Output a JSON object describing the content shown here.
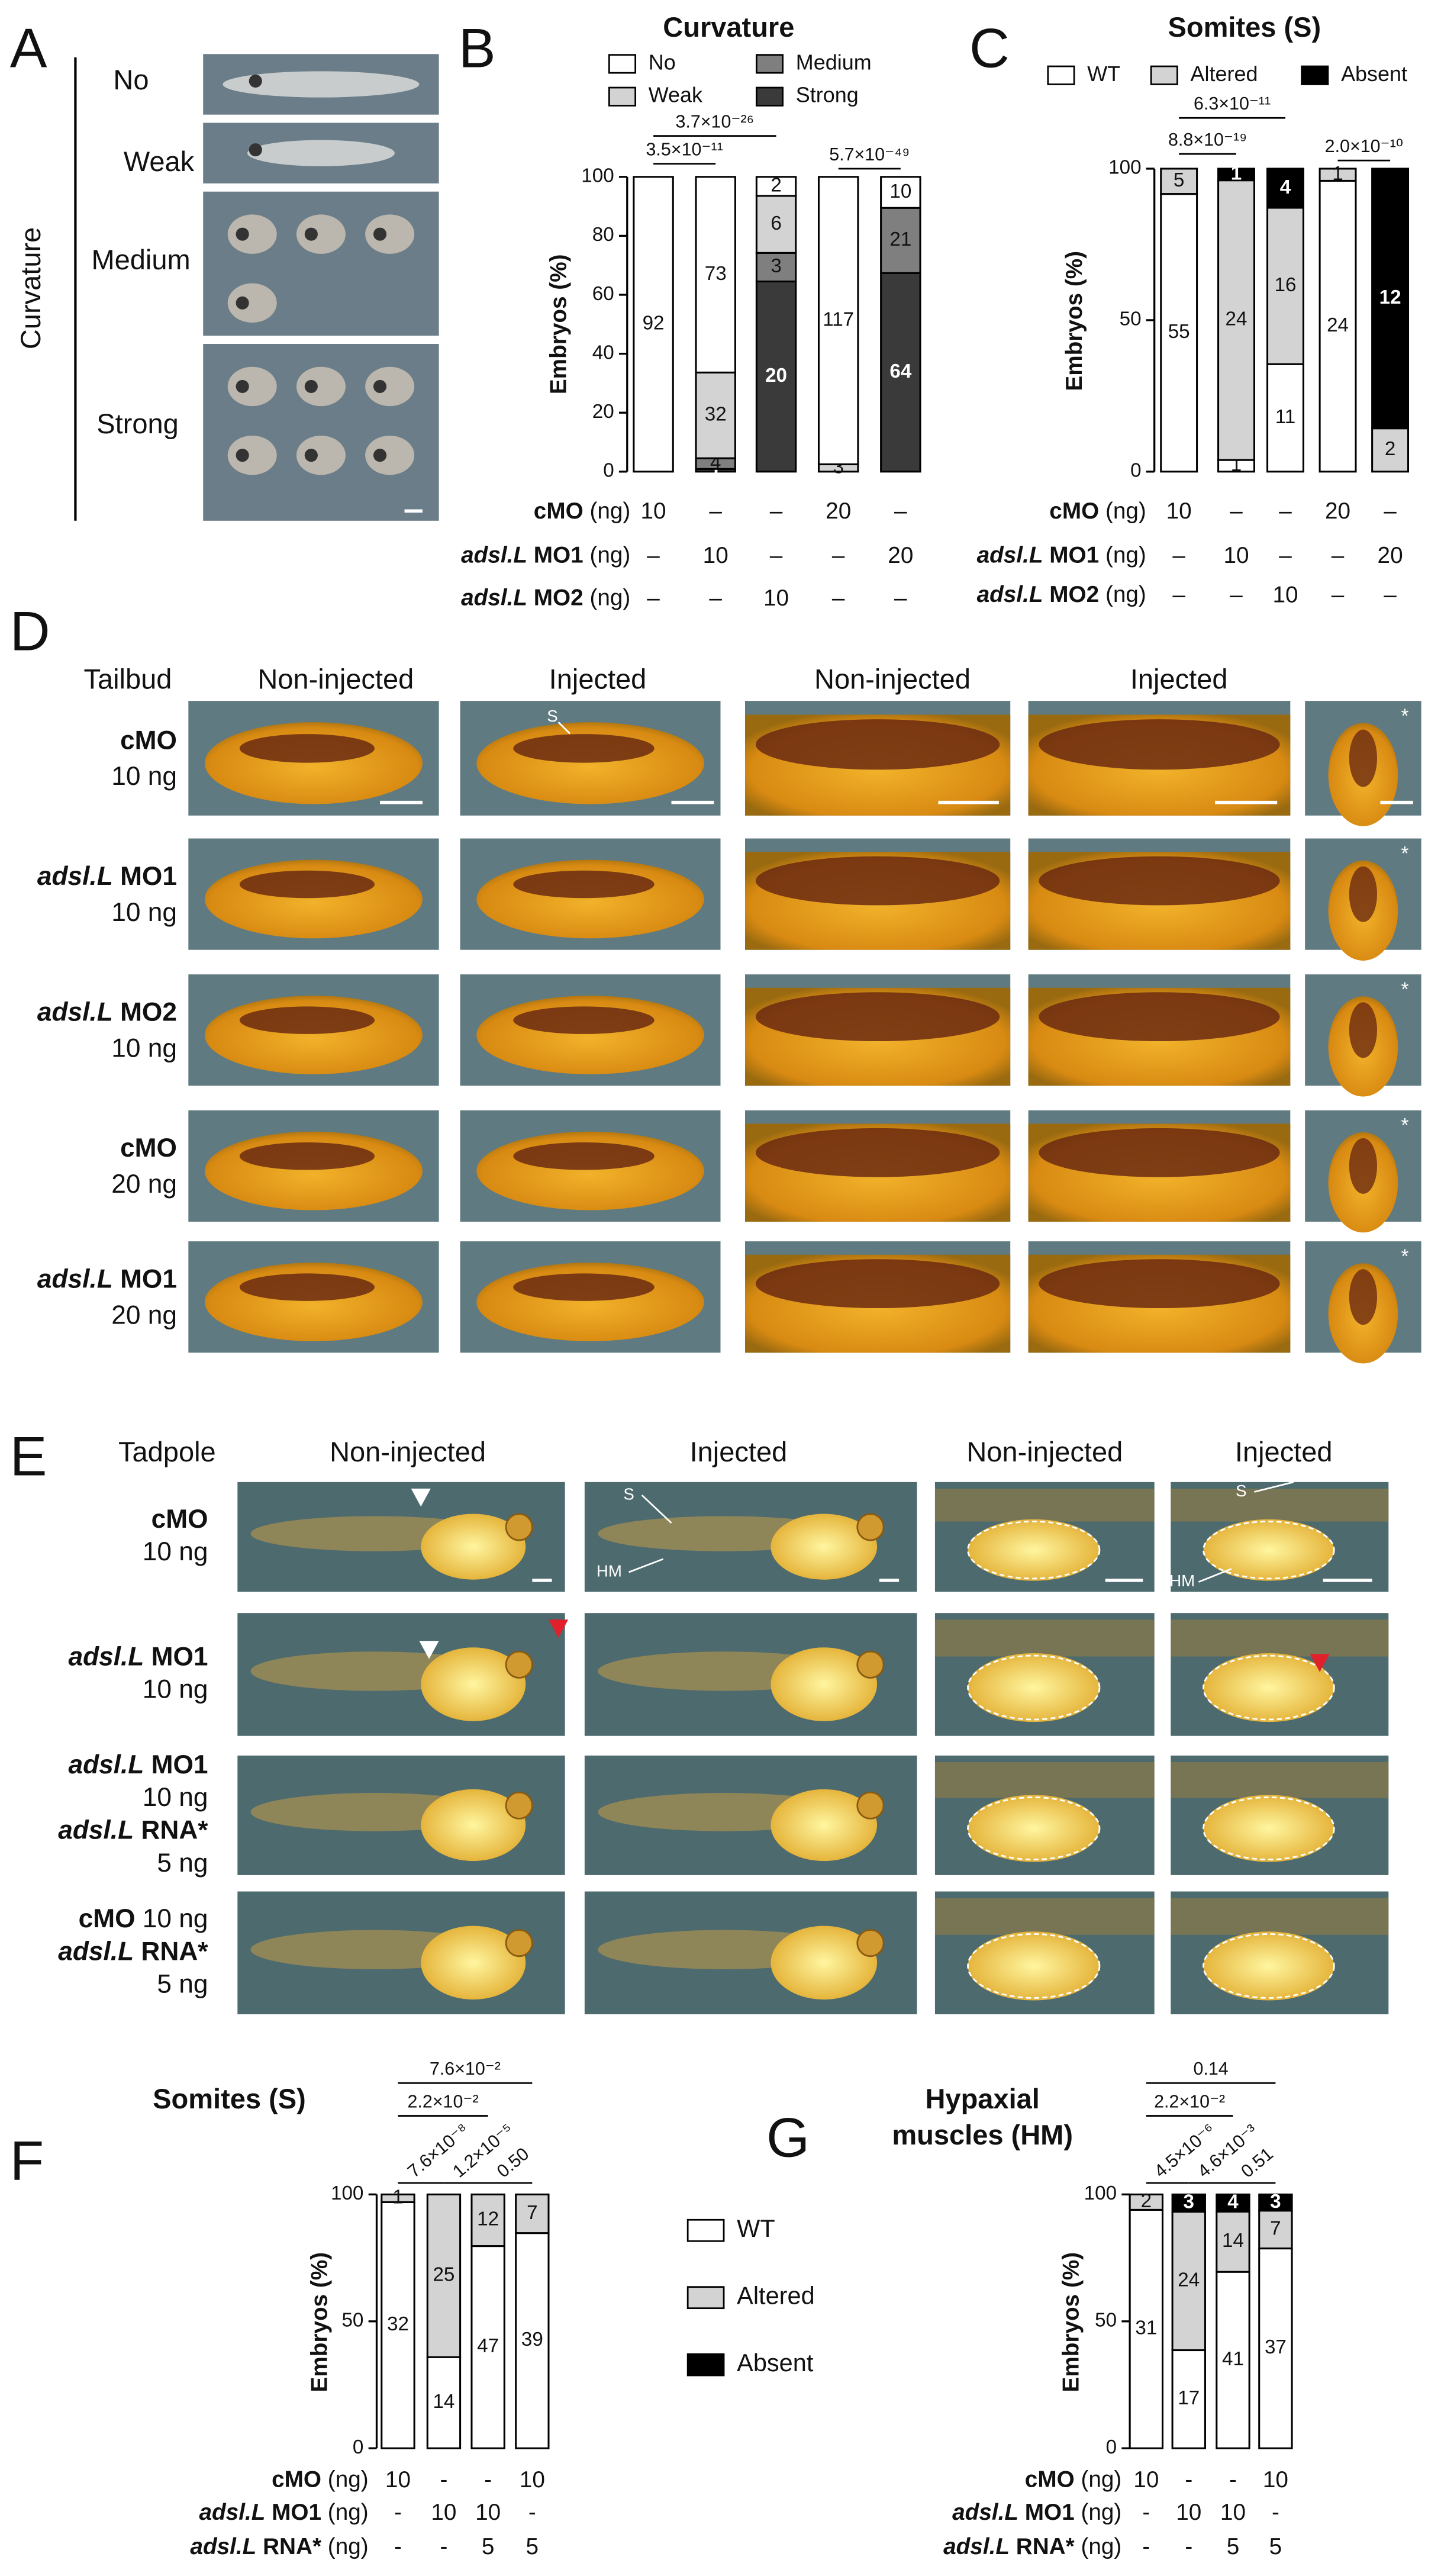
{
  "panel_labels": [
    "A",
    "B",
    "C",
    "D",
    "E",
    "F",
    "G"
  ],
  "panel_a": {
    "axis_title": "Curvature",
    "classes": [
      "No",
      "Weak",
      "Medium",
      "Strong"
    ]
  },
  "chart_data": [
    {
      "type": "bar",
      "stacking": "percent",
      "legend": true,
      "title": "Curvature",
      "ylabel": "Embryos (%)",
      "ylim": [
        0,
        100
      ],
      "yticks": [
        0,
        20,
        40,
        60,
        80,
        100
      ],
      "series": [
        {
          "name": "Strong",
          "color": "#3a3a3a",
          "values": [
            0,
            1,
            20,
            0,
            64
          ]
        },
        {
          "name": "Medium",
          "color": "#7f7f7f",
          "values": [
            0,
            4,
            3,
            0,
            21
          ]
        },
        {
          "name": "Weak",
          "color": "#d3d3d3",
          "values": [
            0,
            32,
            6,
            3,
            0
          ]
        },
        {
          "name": "No",
          "color": "#ffffff",
          "values": [
            92,
            73,
            2,
            117,
            10
          ]
        }
      ],
      "conditions": [
        {
          "name": "cMO",
          "unit": "(ng)",
          "values": [
            "10",
            "–",
            "–",
            "20",
            "–"
          ]
        },
        {
          "gene": "adsl.L",
          "name": "MO1",
          "unit": "(ng)",
          "values": [
            "–",
            "10",
            "–",
            "–",
            "20"
          ]
        },
        {
          "gene": "adsl.L",
          "name": "MO2",
          "unit": "(ng)",
          "values": [
            "–",
            "–",
            "10",
            "–",
            "–"
          ]
        }
      ],
      "annotations": [
        "3.5×10⁻¹¹",
        "3.7×10⁻²⁶",
        "5.7×10⁻⁴⁹"
      ]
    },
    {
      "type": "bar",
      "stacking": "percent",
      "legend": true,
      "title": "Somites (S)",
      "ylabel": "Embryos (%)",
      "ylim": [
        0,
        100
      ],
      "yticks": [
        0,
        50,
        100
      ],
      "series": [
        {
          "name": "WT",
          "color": "#ffffff",
          "values": [
            55,
            1,
            11,
            24,
            0
          ]
        },
        {
          "name": "Altered",
          "color": "#d3d3d3",
          "values": [
            5,
            24,
            16,
            1,
            2
          ]
        },
        {
          "name": "Absent",
          "color": "#000000",
          "values": [
            0,
            1,
            4,
            0,
            12
          ]
        }
      ],
      "conditions": [
        {
          "name": "cMO",
          "unit": "(ng)",
          "values": [
            "10",
            "–",
            "–",
            "20",
            "–"
          ]
        },
        {
          "gene": "adsl.L",
          "name": "MO1",
          "unit": "(ng)",
          "values": [
            "–",
            "10",
            "–",
            "–",
            "20"
          ]
        },
        {
          "gene": "adsl.L",
          "name": "MO2",
          "unit": "(ng)",
          "values": [
            "–",
            "–",
            "10",
            "–",
            "–"
          ]
        }
      ],
      "annotations": [
        "8.8×10⁻¹⁹",
        "6.3×10⁻¹¹",
        "2.0×10⁻¹⁰"
      ]
    },
    {
      "type": "bar",
      "stacking": "percent",
      "legend": true,
      "title": "Somites (S)",
      "ylabel": "Embryos (%)",
      "ylim": [
        0,
        100
      ],
      "yticks": [
        0,
        50,
        100
      ],
      "series": [
        {
          "name": "WT",
          "color": "#ffffff",
          "values": [
            32,
            14,
            47,
            39
          ]
        },
        {
          "name": "Altered",
          "color": "#d3d3d3",
          "values": [
            1,
            25,
            12,
            7
          ]
        },
        {
          "name": "Absent",
          "color": "#000000",
          "values": [
            0,
            0,
            0,
            0
          ]
        }
      ],
      "conditions": [
        {
          "name": "cMO",
          "unit": "(ng)",
          "values": [
            "10",
            "-",
            "-",
            "10"
          ]
        },
        {
          "gene": "adsl.L",
          "name": "MO1",
          "unit": "(ng)",
          "values": [
            "-",
            "10",
            "10",
            "-"
          ]
        },
        {
          "gene": "adsl.L",
          "name": "RNA*",
          "unit": "(ng)",
          "values": [
            "-",
            "-",
            "5",
            "5"
          ]
        }
      ],
      "annotations": [
        "7.6×10⁻⁸",
        "1.2×10⁻⁵",
        "0.50",
        "2.2×10⁻²",
        "7.6×10⁻²"
      ]
    },
    {
      "type": "bar",
      "stacking": "percent",
      "legend": false,
      "title": [
        "Hypaxial",
        "muscles (HM)"
      ],
      "ylabel": "Embryos (%)",
      "ylim": [
        0,
        100
      ],
      "yticks": [
        0,
        50,
        100
      ],
      "series": [
        {
          "color": "#ffffff",
          "values": [
            31,
            17,
            41,
            37
          ]
        },
        {
          "color": "#d3d3d3",
          "values": [
            2,
            24,
            14,
            7
          ]
        },
        {
          "color": "#000000",
          "values": [
            0,
            3,
            4,
            3
          ]
        }
      ],
      "conditions": [
        {
          "name": "cMO",
          "unit": "(ng)",
          "values": [
            "10",
            "-",
            "-",
            "10"
          ]
        },
        {
          "gene": "adsl.L",
          "name": "MO1",
          "unit": "(ng)",
          "values": [
            "-",
            "10",
            "10",
            "-"
          ]
        },
        {
          "gene": "adsl.L",
          "name": "RNA*",
          "unit": "(ng)",
          "values": [
            "-",
            "-",
            "5",
            "5"
          ]
        }
      ],
      "annotations": [
        "4.5×10⁻⁶",
        "4.6×10⁻³",
        "0.51",
        "2.2×10⁻²",
        "0.14"
      ]
    }
  ],
  "panel_d": {
    "stage": "Tailbud",
    "columns": [
      "Non-injected",
      "Injected",
      "Non-injected",
      "Injected"
    ],
    "annotation": "S",
    "rows": [
      {
        "name": "cMO",
        "dose": "10 ng",
        "mark": "*"
      },
      {
        "gene": "adsl.L",
        "name": "MO1",
        "dose": "10 ng",
        "mark": "*"
      },
      {
        "gene": "adsl.L",
        "name": "MO2",
        "dose": "10 ng",
        "mark": "*"
      },
      {
        "name": "cMO",
        "dose": "20 ng",
        "mark": "*"
      },
      {
        "gene": "adsl.L",
        "name": "MO1",
        "dose": "20 ng",
        "mark": "*"
      }
    ]
  },
  "panel_e": {
    "stage": "Tadpole",
    "columns": [
      "Non-injected",
      "Injected",
      "Non-injected",
      "Injected"
    ],
    "annotations": [
      "S",
      "HM",
      "S",
      "HM"
    ],
    "rows": [
      [
        {
          "name": "cMO"
        },
        {
          "dose": "10 ng"
        }
      ],
      [
        {
          "gene": "adsl.L",
          "name": "MO1"
        },
        {
          "dose": "10 ng"
        }
      ],
      [
        {
          "gene": "adsl.L",
          "name": "MO1"
        },
        {
          "dose": "10 ng"
        },
        {
          "gene": "adsl.L",
          "name": "RNA*"
        },
        {
          "dose": "5 ng"
        }
      ],
      [
        {
          "name": "cMO",
          "dose": "10 ng"
        },
        {
          "gene": "adsl.L",
          "name": "RNA*"
        },
        {
          "dose": "5 ng"
        }
      ]
    ]
  }
}
